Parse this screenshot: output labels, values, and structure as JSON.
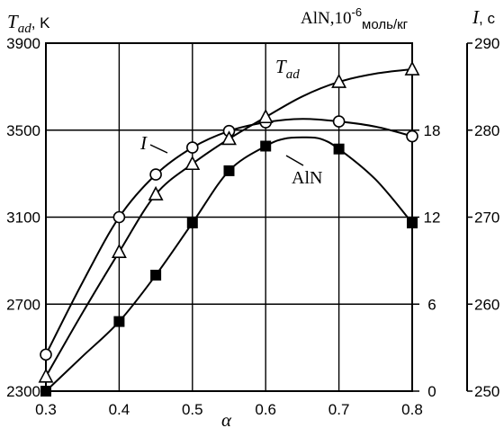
{
  "chart_data": {
    "type": "line",
    "title": "",
    "grid": true,
    "x_axis": {
      "label": "α",
      "range": [
        0.3,
        0.8
      ],
      "ticks": [
        "0.3",
        "0.4",
        "0.5",
        "0.6",
        "0.7",
        "0.8"
      ]
    },
    "left_axis": {
      "label_symbol": "T",
      "label_sub": "ad",
      "label_unit": ", K",
      "range": [
        2300,
        3900
      ],
      "ticks": [
        "2300",
        "2700",
        "3100",
        "3500",
        "3900"
      ]
    },
    "inner_axis": {
      "label_main": "AlN,10",
      "label_sup": "-6",
      "label_unit": "моль/кг",
      "range": [
        0,
        24
      ],
      "ticks": [
        "0",
        "6",
        "12",
        "18"
      ]
    },
    "right_axis": {
      "label_symbol": "I",
      "label_unit": ", c",
      "range": [
        250,
        290
      ],
      "ticks": [
        "250",
        "260",
        "270",
        "280",
        "290"
      ]
    },
    "annotations": {
      "tad_symbol": "T",
      "tad_sub": "ad",
      "i_label": "I",
      "aln_label": "AlN"
    },
    "series": [
      {
        "id": "I",
        "marker": "circle",
        "axis": "right",
        "x": [
          0.3,
          0.4,
          0.45,
          0.5,
          0.55,
          0.6,
          0.7,
          0.8
        ],
        "y": [
          254.2,
          270.0,
          274.9,
          278.0,
          279.9,
          280.9,
          281.0,
          279.3
        ],
        "curve": [
          [
            0.3,
            254.2
          ],
          [
            0.35,
            262.5
          ],
          [
            0.4,
            270.0
          ],
          [
            0.45,
            274.9
          ],
          [
            0.5,
            278.0
          ],
          [
            0.55,
            279.9
          ],
          [
            0.6,
            280.9
          ],
          [
            0.65,
            281.3
          ],
          [
            0.7,
            281.0
          ],
          [
            0.75,
            280.4
          ],
          [
            0.8,
            279.3
          ]
        ]
      },
      {
        "id": "Tad",
        "marker": "triangle",
        "axis": "left",
        "x": [
          0.3,
          0.4,
          0.45,
          0.5,
          0.55,
          0.6,
          0.7,
          0.8
        ],
        "y": [
          2367,
          2940,
          3205,
          3345,
          3460,
          3560,
          3722,
          3780
        ],
        "curve": [
          [
            0.3,
            2367
          ],
          [
            0.35,
            2660
          ],
          [
            0.4,
            2940
          ],
          [
            0.45,
            3205
          ],
          [
            0.5,
            3345
          ],
          [
            0.55,
            3460
          ],
          [
            0.6,
            3560
          ],
          [
            0.65,
            3655
          ],
          [
            0.7,
            3722
          ],
          [
            0.75,
            3760
          ],
          [
            0.8,
            3780
          ]
        ]
      },
      {
        "id": "AlN",
        "marker": "square",
        "axis": "inner",
        "x": [
          0.3,
          0.4,
          0.45,
          0.5,
          0.55,
          0.6,
          0.7,
          0.8
        ],
        "y": [
          0,
          4.8,
          8.0,
          11.6,
          15.2,
          16.9,
          16.7,
          11.6
        ],
        "curve": [
          [
            0.3,
            0
          ],
          [
            0.35,
            2.4
          ],
          [
            0.4,
            4.8
          ],
          [
            0.45,
            8.0
          ],
          [
            0.5,
            11.6
          ],
          [
            0.55,
            15.2
          ],
          [
            0.6,
            16.9
          ],
          [
            0.625,
            17.4
          ],
          [
            0.65,
            17.5
          ],
          [
            0.675,
            17.4
          ],
          [
            0.7,
            16.7
          ],
          [
            0.75,
            14.6
          ],
          [
            0.8,
            11.6
          ]
        ]
      }
    ]
  }
}
